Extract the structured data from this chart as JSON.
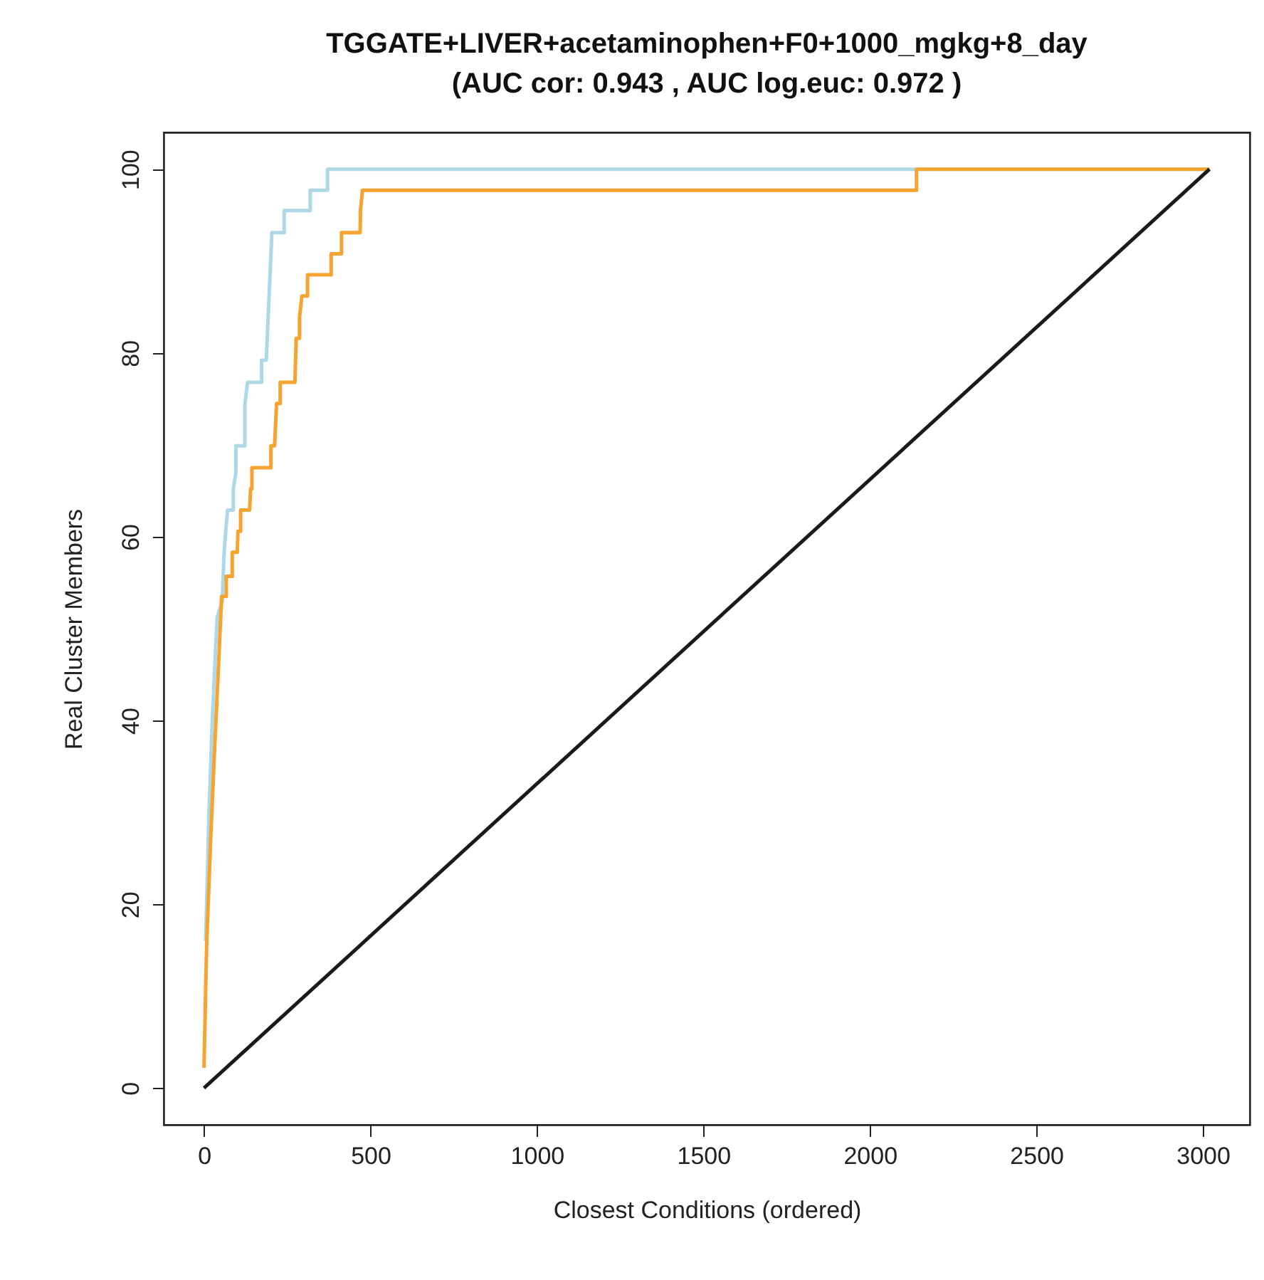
{
  "chart_data": {
    "type": "line",
    "title": "TGGATE+LIVER+acetaminophen+F0+1000_mgkg+8_day",
    "subtitle": "(AUC cor: 0.943 , AUC log.euc: 0.972 )",
    "xlabel": "Closest Conditions (ordered)",
    "ylabel": "Real Cluster Members",
    "xlim": [
      -121,
      3141
    ],
    "ylim": [
      -4,
      104
    ],
    "xticks": [
      0,
      500,
      1000,
      1500,
      2000,
      2500,
      3000
    ],
    "yticks": [
      0,
      20,
      40,
      60,
      80,
      100
    ],
    "grid": false,
    "line_style": "solid",
    "series": [
      {
        "color": "#add8e6",
        "x": [
          5,
          15,
          25,
          35,
          40,
          55,
          60,
          65,
          71,
          88,
          88,
          96,
          96,
          123,
          123,
          131,
          173,
          173,
          187,
          204,
          241,
          241,
          319,
          319,
          371,
          371,
          3020
        ],
        "values": [
          16,
          30,
          40,
          48,
          51.3,
          53,
          58,
          60.5,
          62.9,
          62.9,
          65.2,
          67,
          69.9,
          69.9,
          74.5,
          76.8,
          76.8,
          79.2,
          79.2,
          93.1,
          93.1,
          95.5,
          95.5,
          97.7,
          97.7,
          100,
          100
        ]
      },
      {
        "color": "#f6a330",
        "x": [
          0,
          8,
          20,
          32,
          45,
          53,
          67,
          67,
          85,
          85,
          100,
          102,
          110,
          110,
          137,
          140,
          144,
          144,
          201,
          201,
          212,
          218,
          229,
          229,
          273,
          277,
          287,
          287,
          294,
          311,
          311,
          382,
          382,
          413,
          413,
          469,
          470,
          476,
          2140,
          2140,
          3020
        ],
        "values": [
          2.2,
          15.7,
          27,
          37,
          47,
          53.5,
          53.5,
          55.7,
          55.7,
          58.3,
          58.3,
          60.6,
          60.6,
          62.9,
          62.9,
          65.2,
          65.2,
          67.5,
          67.5,
          69.9,
          69.9,
          74.5,
          74.5,
          76.8,
          76.8,
          81.6,
          81.6,
          83.9,
          86.2,
          86.2,
          88.5,
          88.5,
          90.8,
          90.8,
          93.1,
          93.1,
          95.5,
          97.7,
          97.7,
          100,
          100
        ]
      },
      {
        "color": "#1a1a1a",
        "x": [
          0,
          3020
        ],
        "values": [
          0,
          100
        ]
      }
    ]
  }
}
